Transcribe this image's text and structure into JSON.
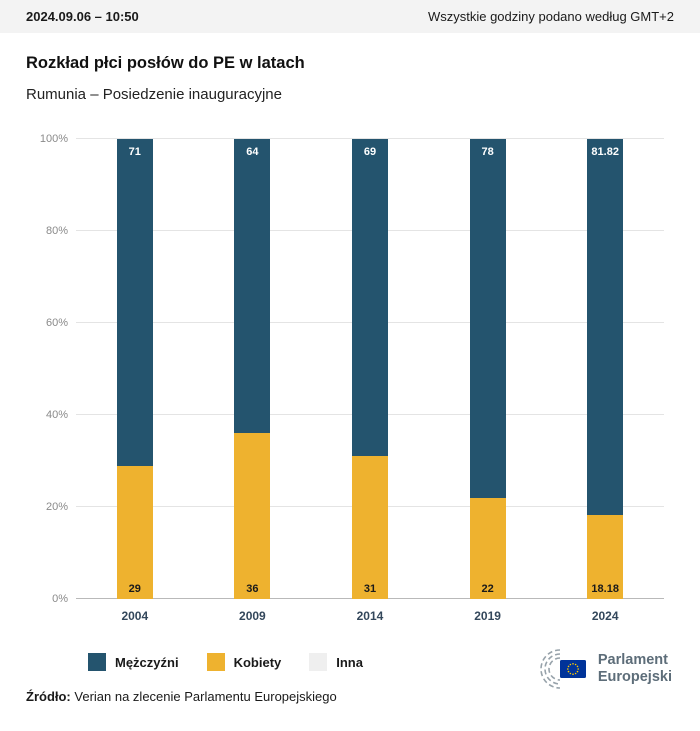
{
  "header": {
    "datetime": "2024.09.06 – 10:50",
    "timezone_note": "Wszystkie godziny podano według GMT+2"
  },
  "title": "Rozkład płci posłów do PE w latach",
  "subtitle": "Rumunia – Posiedzenie inauguracyjne",
  "chart_data": {
    "type": "bar",
    "stacked": true,
    "percent_stacked": true,
    "categories": [
      "2004",
      "2009",
      "2014",
      "2019",
      "2024"
    ],
    "series": [
      {
        "name": "Mężczyźni",
        "color": "#24546e",
        "values": [
          71,
          64,
          69,
          78,
          81.82
        ],
        "labels": [
          "71",
          "64",
          "69",
          "78",
          "81.82"
        ]
      },
      {
        "name": "Kobiety",
        "color": "#eeb22f",
        "values": [
          29,
          36,
          31,
          22,
          18.18
        ],
        "labels": [
          "29",
          "36",
          "31",
          "22",
          "18.18"
        ]
      },
      {
        "name": "Inna",
        "color": "#efefef",
        "values": [
          0,
          0,
          0,
          0,
          0
        ]
      }
    ],
    "ylim": [
      0,
      100
    ],
    "yticks": [
      "0%",
      "20%",
      "40%",
      "60%",
      "80%",
      "100%"
    ],
    "grid": true,
    "legend_position": "bottom"
  },
  "footer": {
    "source_label": "Źródło:",
    "source_text": "Verian na zlecenie Parlamentu Europejskiego"
  },
  "logo": {
    "line1": "Parlament",
    "line2": "Europejski"
  }
}
